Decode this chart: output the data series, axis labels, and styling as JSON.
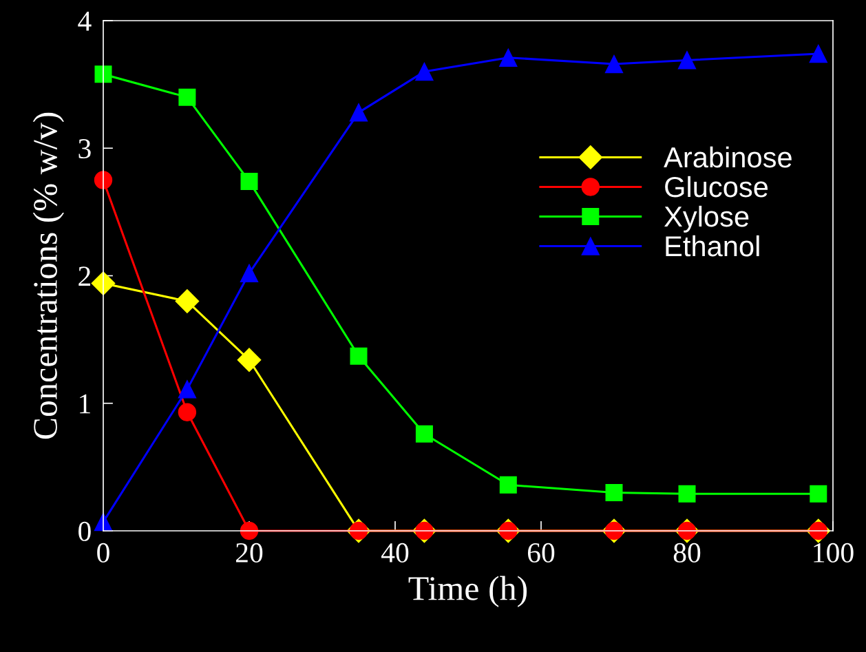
{
  "chart_data": {
    "type": "line",
    "xlabel": "Time (h)",
    "ylabel": "Concentrations (% w/v)",
    "x": [
      0,
      11.5,
      20,
      35,
      44,
      55.5,
      70,
      80,
      98
    ],
    "series": [
      {
        "name": "Arabinose",
        "color": "#ffff00",
        "marker": "diamond",
        "values": [
          1.94,
          1.8,
          1.34,
          0,
          0,
          0,
          0,
          0,
          0
        ]
      },
      {
        "name": "Glucose",
        "color": "#ff0000",
        "marker": "circle",
        "values": [
          2.75,
          0.93,
          0,
          0,
          0,
          0,
          0,
          0,
          0
        ]
      },
      {
        "name": "Xylose",
        "color": "#00ff00",
        "marker": "square",
        "values": [
          3.58,
          3.4,
          2.74,
          1.37,
          0.76,
          0.36,
          0.3,
          0.29,
          0.29
        ]
      },
      {
        "name": "Ethanol",
        "color": "#0000ff",
        "marker": "triangle",
        "values": [
          0.07,
          1.11,
          2.02,
          3.28,
          3.6,
          3.71,
          3.66,
          3.69,
          3.74
        ]
      }
    ],
    "xlim": [
      0,
      100
    ],
    "xticks": [
      0,
      20,
      40,
      60,
      80,
      100
    ],
    "ylim": [
      0,
      4
    ],
    "yticks": [
      0,
      1,
      2,
      3,
      4
    ],
    "grid": false,
    "legend": "right",
    "line_style": "solid"
  }
}
